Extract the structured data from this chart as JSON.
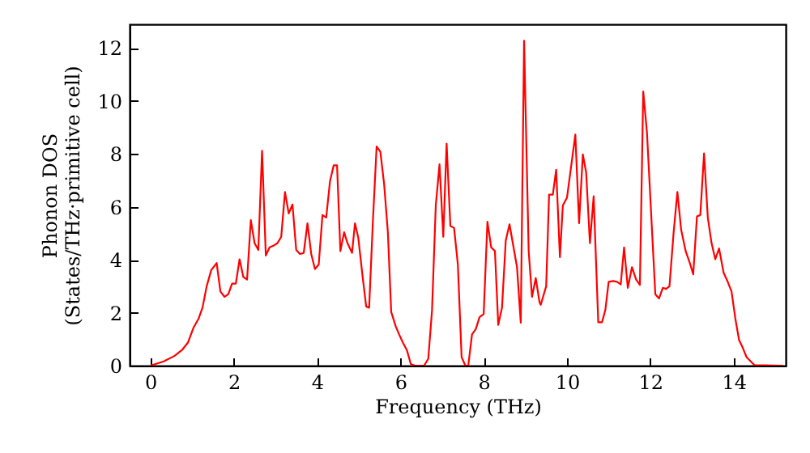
{
  "chart_data": {
    "type": "line",
    "xlabel": "Frequency (THz)",
    "ylabel": "Phonon DOS\n(States/THz·primitive cell)",
    "xlim": [
      -0.5,
      15.25
    ],
    "ylim": [
      0,
      12.9
    ],
    "xticks": [
      0,
      2,
      4,
      6,
      8,
      10,
      12,
      14
    ],
    "yticks": [
      0,
      2,
      4,
      6,
      8,
      10,
      12
    ],
    "grid": false,
    "series": [
      {
        "color": "#ff0000",
        "x": [
          0,
          0.32,
          0.58,
          0.77,
          0.9,
          1.03,
          1.16,
          1.25,
          1.35,
          1.46,
          1.59,
          1.68,
          1.78,
          1.87,
          1.96,
          2.05,
          2.14,
          2.23,
          2.32,
          2.41,
          2.5,
          2.59,
          2.68,
          2.77,
          2.86,
          2.95,
          3.05,
          3.14,
          3.23,
          3.32,
          3.41,
          3.5,
          3.59,
          3.68,
          3.77,
          3.86,
          3.95,
          4.04,
          4.13,
          4.22,
          4.31,
          4.4,
          4.48,
          4.56,
          4.65,
          4.73,
          4.84,
          4.91,
          4.99,
          5.09,
          5.18,
          5.25,
          5.34,
          5.43,
          5.52,
          5.61,
          5.7,
          5.78,
          5.89,
          5.97,
          6.06,
          6.16,
          6.25,
          6.35,
          6.57,
          6.67,
          6.76,
          6.85,
          6.94,
          7.03,
          7.11,
          7.2,
          7.29,
          7.38,
          7.47,
          7.56,
          7.63,
          7.72,
          7.81,
          7.9,
          8.0,
          8.09,
          8.18,
          8.27,
          8.35,
          8.44,
          8.53,
          8.62,
          8.71,
          8.8,
          8.89,
          8.97,
          9.08,
          9.16,
          9.25,
          9.34,
          9.37,
          9.5,
          9.57,
          9.66,
          9.74,
          9.83,
          9.9,
          10.0,
          10.2,
          10.29,
          10.38,
          10.46,
          10.55,
          10.64,
          10.75,
          10.84,
          10.92,
          11.0,
          11.11,
          11.2,
          11.29,
          11.37,
          11.46,
          11.56,
          11.66,
          11.75,
          11.83,
          11.92,
          12.12,
          12.21,
          12.3,
          12.38,
          12.46,
          12.56,
          12.65,
          12.74,
          12.85,
          12.94,
          13.03,
          13.12,
          13.2,
          13.29,
          13.38,
          13.47,
          13.56,
          13.65,
          13.76,
          13.85,
          13.95,
          14.04,
          14.13,
          14.22,
          14.31,
          14.41,
          14.5,
          15.19
        ],
        "values": [
          0,
          0.16,
          0.37,
          0.61,
          0.87,
          1.42,
          1.79,
          2.19,
          3.0,
          3.61,
          3.88,
          2.8,
          2.6,
          2.7,
          3.1,
          3.1,
          4.02,
          3.35,
          3.25,
          5.5,
          4.63,
          4.37,
          8.12,
          4.16,
          4.47,
          4.53,
          4.63,
          4.87,
          6.56,
          5.75,
          6.09,
          4.37,
          4.22,
          4.26,
          5.38,
          4.22,
          3.65,
          3.82,
          5.69,
          5.6,
          6.96,
          7.57,
          7.57,
          4.33,
          5.04,
          4.63,
          4.26,
          5.38,
          4.83,
          3.41,
          2.23,
          2.19,
          5.44,
          8.28,
          8.08,
          6.86,
          5.04,
          2.03,
          1.48,
          1.18,
          0.87,
          0.57,
          0.06,
          0,
          0,
          0.26,
          2.09,
          6.05,
          7.61,
          4.87,
          8.39,
          5.28,
          5.2,
          3.82,
          0.32,
          0,
          0,
          1.18,
          1.38,
          1.83,
          1.95,
          5.44,
          4.47,
          4.33,
          1.54,
          2.19,
          4.73,
          5.34,
          4.53,
          3.72,
          1.62,
          12.28,
          4.33,
          2.6,
          3.31,
          2.4,
          2.3,
          3.0,
          6.46,
          6.46,
          7.4,
          4.1,
          6.05,
          6.35,
          8.73,
          5.38,
          7.98,
          7.3,
          4.63,
          6.4,
          1.64,
          1.64,
          2.1,
          3.17,
          3.2,
          3.17,
          3.07,
          4.47,
          2.94,
          3.72,
          3.25,
          3.05,
          10.36,
          8.8,
          2.7,
          2.54,
          2.94,
          2.9,
          3.0,
          5.04,
          6.56,
          5.14,
          4.32,
          3.92,
          3.45,
          5.64,
          5.69,
          8.02,
          5.6,
          4.63,
          4.02,
          4.43,
          3.51,
          3.2,
          2.8,
          1.79,
          0.97,
          0.67,
          0.32,
          0.16,
          0.02,
          0
        ]
      }
    ]
  }
}
